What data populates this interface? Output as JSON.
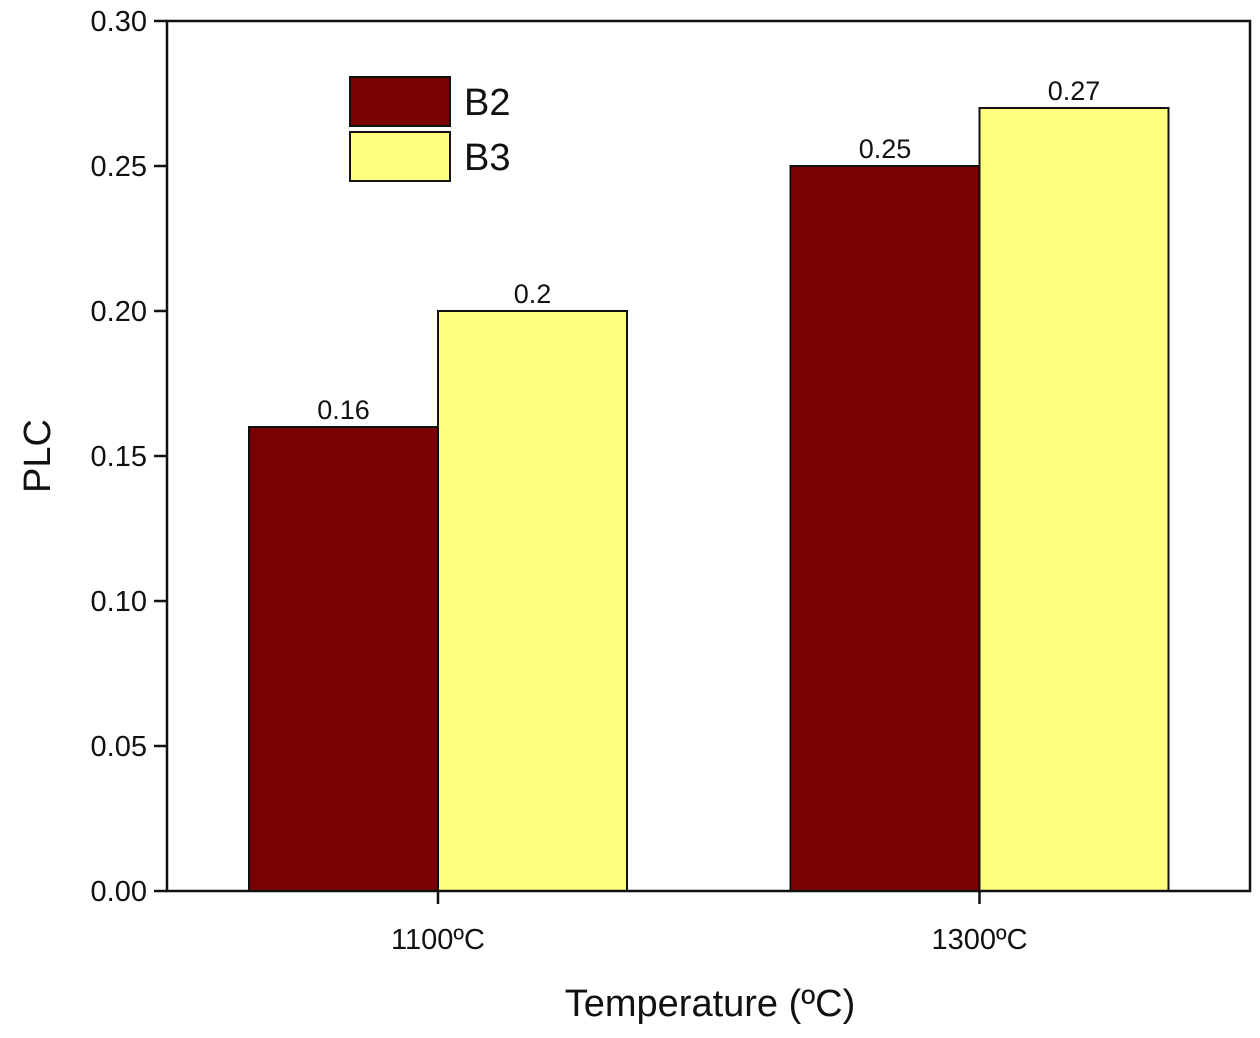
{
  "chart_data": {
    "type": "bar",
    "title": "",
    "xlabel": "Temperature (ºC)",
    "ylabel": "PLC",
    "categories": [
      "1100ºC",
      "1300ºC"
    ],
    "series": [
      {
        "name": "B2",
        "color": "#7b0000",
        "values": [
          0.16,
          0.25
        ],
        "labels": [
          "0.16",
          "0.25"
        ]
      },
      {
        "name": "B3",
        "color": "#ffff80",
        "values": [
          0.2,
          0.27
        ],
        "labels": [
          "0.2",
          "0.27"
        ]
      }
    ],
    "ylim": [
      0,
      0.3
    ],
    "yticks": [
      0.0,
      0.05,
      0.1,
      0.15,
      0.2,
      0.25,
      0.3
    ],
    "ytick_labels": [
      "0.00",
      "0.05",
      "0.10",
      "0.15",
      "0.20",
      "0.25",
      "0.30"
    ],
    "grid": false,
    "legend_position": "top-left"
  }
}
